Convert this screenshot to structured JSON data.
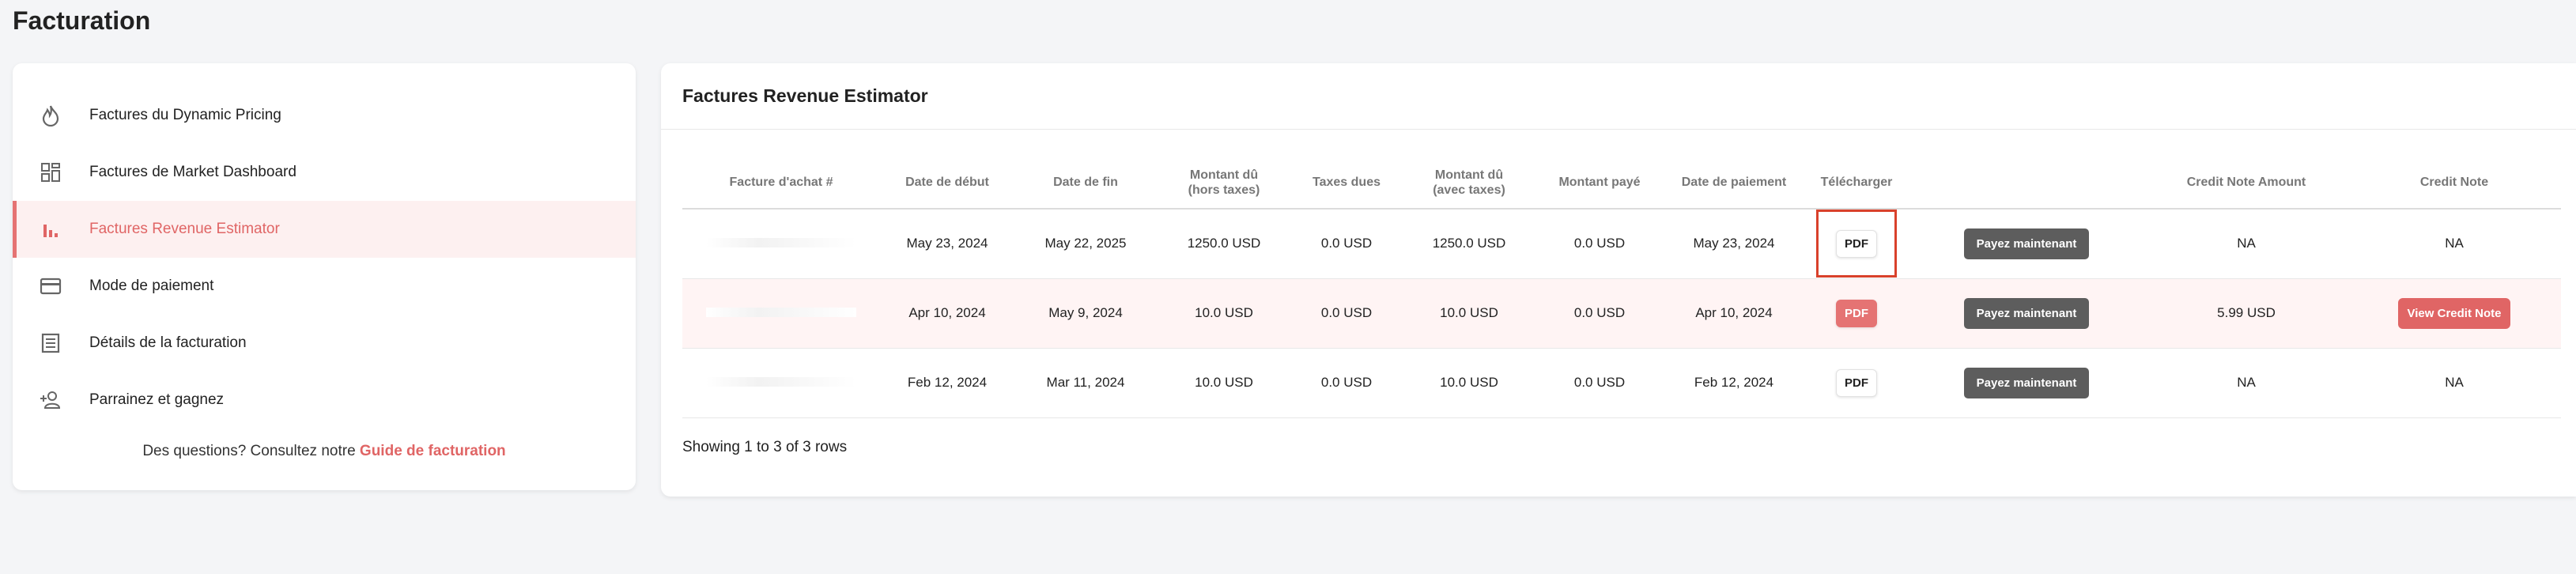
{
  "page": {
    "title": "Facturation"
  },
  "sidebar": {
    "items": [
      {
        "label": "Factures du Dynamic Pricing",
        "icon": "flame-icon"
      },
      {
        "label": "Factures de Market Dashboard",
        "icon": "dashboard-icon"
      },
      {
        "label": "Factures Revenue Estimator",
        "icon": "bar-chart-icon",
        "active": true
      },
      {
        "label": "Mode de paiement",
        "icon": "credit-card-icon"
      },
      {
        "label": "Détails de la facturation",
        "icon": "document-icon"
      },
      {
        "label": "Parrainez et gagnez",
        "icon": "add-user-icon"
      }
    ],
    "footer_text": "Des questions? Consultez notre ",
    "footer_link": "Guide de facturation"
  },
  "main": {
    "title": "Factures Revenue Estimator",
    "columns": [
      "Facture d'achat #",
      "Date de début",
      "Date de fin",
      "Montant dû\n(hors taxes)",
      "Taxes dues",
      "Montant dû\n(avec taxes)",
      "Montant payé",
      "Date de paiement",
      "Télécharger",
      "",
      "Credit Note Amount",
      "Credit Note"
    ],
    "rows": [
      {
        "invoice": "",
        "start": "May 23, 2024",
        "end": "May 22, 2025",
        "amount_ht": "1250.0 USD",
        "taxes": "0.0 USD",
        "amount_ttc": "1250.0 USD",
        "paid": "0.0 USD",
        "payment_date": "May 23, 2024",
        "pdf": "PDF",
        "pay": "Payez maintenant",
        "credit_amount": "NA",
        "credit_note": "NA"
      },
      {
        "invoice": "",
        "start": "Apr 10, 2024",
        "end": "May 9, 2024",
        "amount_ht": "10.0 USD",
        "taxes": "0.0 USD",
        "amount_ttc": "10.0 USD",
        "paid": "0.0 USD",
        "payment_date": "Apr 10, 2024",
        "pdf": "PDF",
        "pay": "Payez maintenant",
        "credit_amount": "5.99 USD",
        "credit_note": "View Credit Note"
      },
      {
        "invoice": "",
        "start": "Feb 12, 2024",
        "end": "Mar 11, 2024",
        "amount_ht": "10.0 USD",
        "taxes": "0.0 USD",
        "amount_ttc": "10.0 USD",
        "paid": "0.0 USD",
        "payment_date": "Feb 12, 2024",
        "pdf": "PDF",
        "pay": "Payez maintenant",
        "credit_amount": "NA",
        "credit_note": "NA"
      }
    ],
    "footer": "Showing 1 to 3 of 3 rows"
  },
  "colors": {
    "accent": "#e06565",
    "active_bg": "#fdf0f0",
    "pay_button": "#5d5d5d",
    "focus_outline": "#d9412b"
  }
}
